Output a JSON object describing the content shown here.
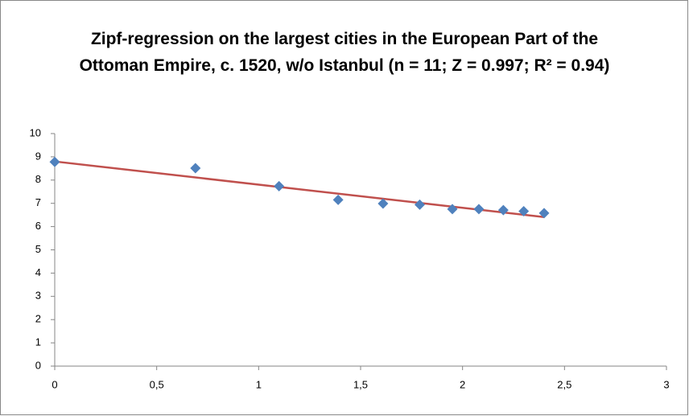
{
  "chart_data": {
    "type": "scatter",
    "title": "Zipf-regression on the largest cities in the European Part of the Ottoman Empire, c. 1520, w/o Istanbul (n = 11; Z = 0.997; R² = 0.94)",
    "series": [
      {
        "color": "#4f81bd",
        "x": [
          0,
          0.69,
          1.1,
          1.39,
          1.61,
          1.79,
          1.95,
          2.08,
          2.2,
          2.3,
          2.4
        ],
        "values": [
          8.78,
          8.51,
          7.74,
          7.15,
          6.99,
          6.94,
          6.75,
          6.75,
          6.71,
          6.66,
          6.58
        ]
      }
    ],
    "trendline": {
      "color": "#c0504d",
      "x": [
        0,
        2.4
      ],
      "values": [
        8.8,
        6.41
      ]
    },
    "xlim": [
      0,
      3
    ],
    "xticks": [
      0,
      {
        "value": 0.5,
        "label": "0,5"
      },
      1,
      {
        "value": 1.5,
        "label": "1,5"
      },
      2,
      {
        "value": 2.5,
        "label": "2,5"
      },
      3
    ],
    "ylim": [
      0,
      10
    ],
    "yticks": [
      0,
      1,
      2,
      3,
      4,
      5,
      6,
      7,
      8,
      9,
      10
    ],
    "grid": false
  }
}
